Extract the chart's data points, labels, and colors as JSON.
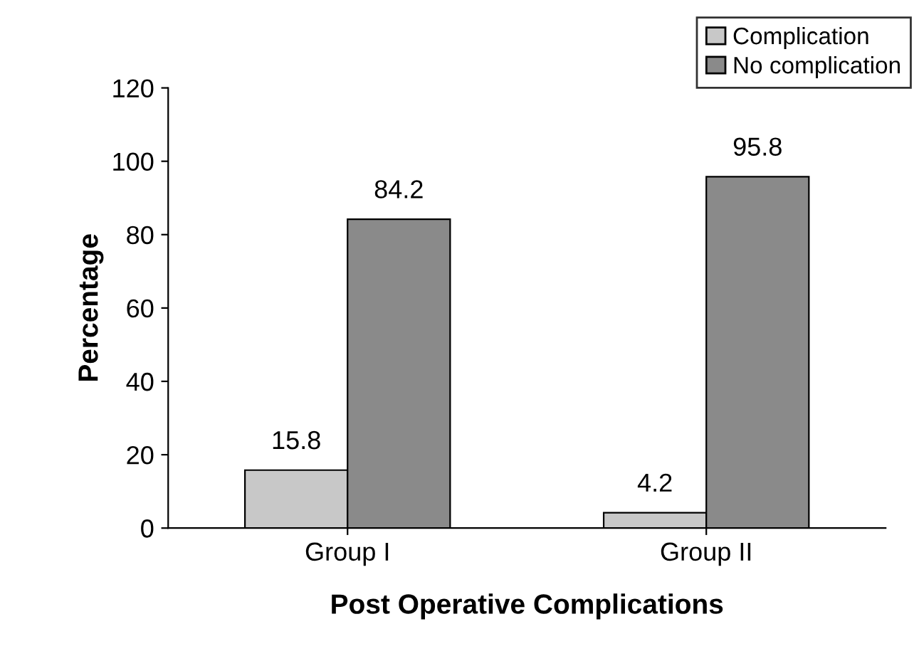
{
  "chart_data": {
    "type": "bar",
    "xlabel": "Post Operative Complications",
    "ylabel": "Percentage",
    "categories": [
      "Group I",
      "Group II"
    ],
    "series": [
      {
        "name": "Complication",
        "color": "#c8c8c8",
        "values": [
          15.8,
          4.2
        ]
      },
      {
        "name": "No complication",
        "color": "#8a8a8a",
        "values": [
          84.2,
          95.8
        ]
      }
    ],
    "ylim": [
      0,
      120
    ],
    "yticks": [
      0,
      20,
      40,
      60,
      80,
      100,
      120
    ],
    "grid": false,
    "legend": "top right",
    "data_labels": true
  }
}
